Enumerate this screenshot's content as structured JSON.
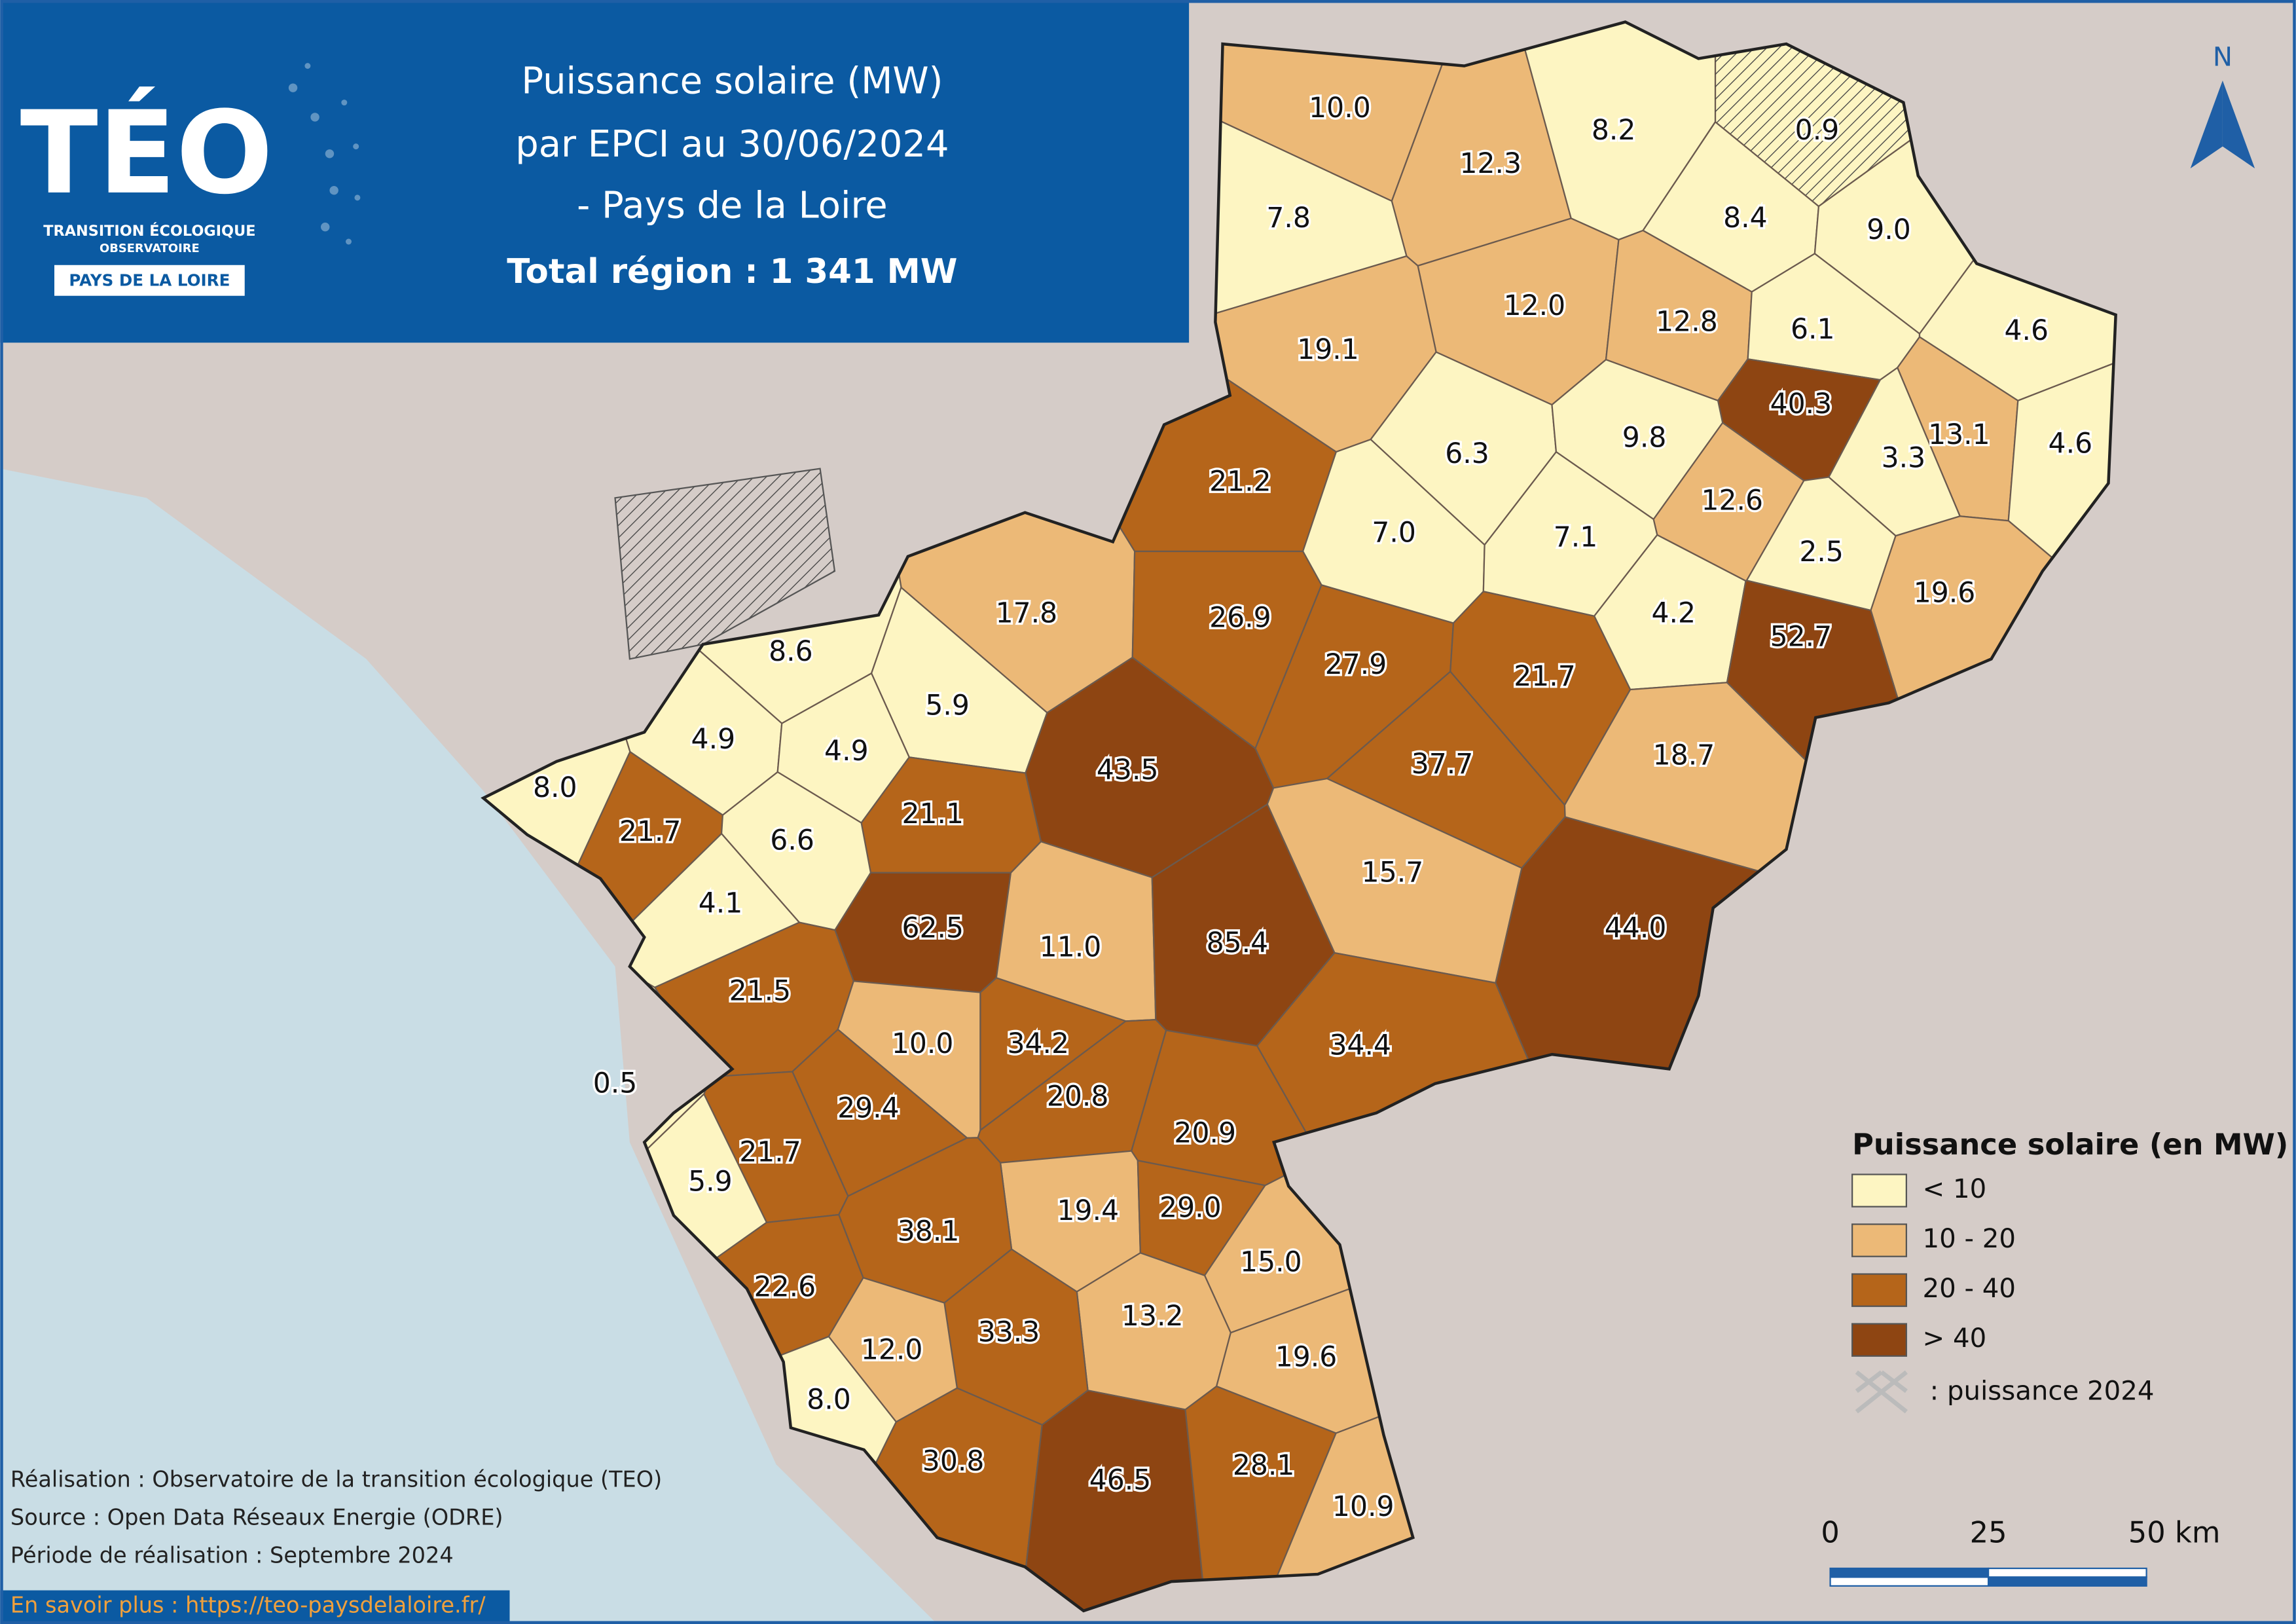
{
  "header": {
    "logo": {
      "title": "TÉO",
      "line1": "TRANSITION ÉCOLOGIQUE",
      "line2": "OBSERVATOIRE",
      "badge": "PAYS DE LA LOIRE"
    },
    "title_lines": [
      "Puissance solaire (MW)",
      "par EPCI au 30/06/2024",
      "- Pays de la Loire"
    ],
    "total": "Total région : 1 341 MW"
  },
  "map": {
    "north": "N",
    "epcis": [
      {
        "label": "10.0",
        "color": "#ecb977"
      },
      {
        "label": "12.3",
        "color": "#ecb977"
      },
      {
        "label": "8.2",
        "color": "#fdf5c2"
      },
      {
        "label": "0.9",
        "color": "#fdf5c2",
        "hatched": true
      },
      {
        "label": "7.8",
        "color": "#fdf5c2"
      },
      {
        "label": "8.4",
        "color": "#fdf5c2"
      },
      {
        "label": "9.0",
        "color": "#fdf5c2"
      },
      {
        "label": "12.0",
        "color": "#ecb977"
      },
      {
        "label": "19.1",
        "color": "#ecb977"
      },
      {
        "label": "12.8",
        "color": "#ecb977"
      },
      {
        "label": "6.1",
        "color": "#fdf5c2"
      },
      {
        "label": "4.6",
        "color": "#fdf5c2"
      },
      {
        "label": "40.3",
        "color": "#8e4512"
      },
      {
        "label": "6.3",
        "color": "#fdf5c2"
      },
      {
        "label": "9.8",
        "color": "#fdf5c2"
      },
      {
        "label": "13.1",
        "color": "#ecb977"
      },
      {
        "label": "4.6",
        "color": "#fdf5c2"
      },
      {
        "label": "21.2",
        "color": "#b5651a"
      },
      {
        "label": "3.3",
        "color": "#fdf5c2"
      },
      {
        "label": "12.6",
        "color": "#ecb977"
      },
      {
        "label": "7.0",
        "color": "#fdf5c2"
      },
      {
        "label": "7.1",
        "color": "#fdf5c2"
      },
      {
        "label": "2.5",
        "color": "#fdf5c2"
      },
      {
        "label": "19.6",
        "color": "#ecb977"
      },
      {
        "label": "17.8",
        "color": "#ecb977"
      },
      {
        "label": "8.6",
        "color": "#fdf5c2"
      },
      {
        "label": "26.9",
        "color": "#b5651a"
      },
      {
        "label": "4.2",
        "color": "#fdf5c2"
      },
      {
        "label": "52.7",
        "color": "#8e4512"
      },
      {
        "label": "27.9",
        "color": "#b5651a"
      },
      {
        "label": "21.7",
        "color": "#b5651a"
      },
      {
        "label": "5.9",
        "color": "#fdf5c2"
      },
      {
        "label": "4.9",
        "color": "#fdf5c2"
      },
      {
        "label": "4.9",
        "color": "#fdf5c2"
      },
      {
        "label": "43.5",
        "color": "#8e4512"
      },
      {
        "label": "37.7",
        "color": "#b5651a"
      },
      {
        "label": "18.7",
        "color": "#ecb977"
      },
      {
        "label": "8.0",
        "color": "#fdf5c2"
      },
      {
        "label": "21.7",
        "color": "#b5651a"
      },
      {
        "label": "21.1",
        "color": "#b5651a"
      },
      {
        "label": "6.6",
        "color": "#fdf5c2"
      },
      {
        "label": "15.7",
        "color": "#ecb977"
      },
      {
        "label": "4.1",
        "color": "#fdf5c2"
      },
      {
        "label": "62.5",
        "color": "#8e4512"
      },
      {
        "label": "11.0",
        "color": "#ecb977"
      },
      {
        "label": "85.4",
        "color": "#8e4512"
      },
      {
        "label": "44.0",
        "color": "#8e4512"
      },
      {
        "label": "21.5",
        "color": "#b5651a"
      },
      {
        "label": "10.0",
        "color": "#ecb977"
      },
      {
        "label": "34.2",
        "color": "#b5651a"
      },
      {
        "label": "34.4",
        "color": "#b5651a"
      },
      {
        "label": "0.5",
        "color": "#fdf5c2"
      },
      {
        "label": "29.4",
        "color": "#b5651a"
      },
      {
        "label": "20.8",
        "color": "#b5651a"
      },
      {
        "label": "20.9",
        "color": "#b5651a"
      },
      {
        "label": "21.7",
        "color": "#b5651a"
      },
      {
        "label": "5.9",
        "color": "#fdf5c2"
      },
      {
        "label": "19.4",
        "color": "#ecb977"
      },
      {
        "label": "29.0",
        "color": "#b5651a"
      },
      {
        "label": "38.1",
        "color": "#b5651a"
      },
      {
        "label": "15.0",
        "color": "#ecb977"
      },
      {
        "label": "22.6",
        "color": "#b5651a"
      },
      {
        "label": "13.2",
        "color": "#ecb977"
      },
      {
        "label": "33.3",
        "color": "#b5651a"
      },
      {
        "label": "12.0",
        "color": "#ecb977"
      },
      {
        "label": "19.6",
        "color": "#ecb977"
      },
      {
        "label": "8.0",
        "color": "#fdf5c2"
      },
      {
        "label": "30.8",
        "color": "#b5651a"
      },
      {
        "label": "46.5",
        "color": "#8e4512"
      },
      {
        "label": "28.1",
        "color": "#b5651a"
      },
      {
        "label": "10.9",
        "color": "#ecb977"
      }
    ]
  },
  "legend": {
    "title": "Puissance solaire (en MW)",
    "classes": [
      {
        "label": "< 10",
        "color": "#fdf5c2"
      },
      {
        "label": "10 - 20",
        "color": "#ecb977"
      },
      {
        "label": "20 - 40",
        "color": "#b5651a"
      },
      {
        "label": "> 40",
        "color": "#8e4512"
      }
    ],
    "hatch_label": ": puissance 2024"
  },
  "scale_bar": {
    "labels": [
      "0",
      "25",
      "50 km"
    ]
  },
  "credits": [
    "Réalisation : Observatoire de la transition écologique (TEO)",
    "Source : Open Data Réseaux Energie (ODRE)",
    "Période de réalisation : Septembre 2024"
  ],
  "link": "En savoir plus : https://teo-paysdelaloire.fr/"
}
